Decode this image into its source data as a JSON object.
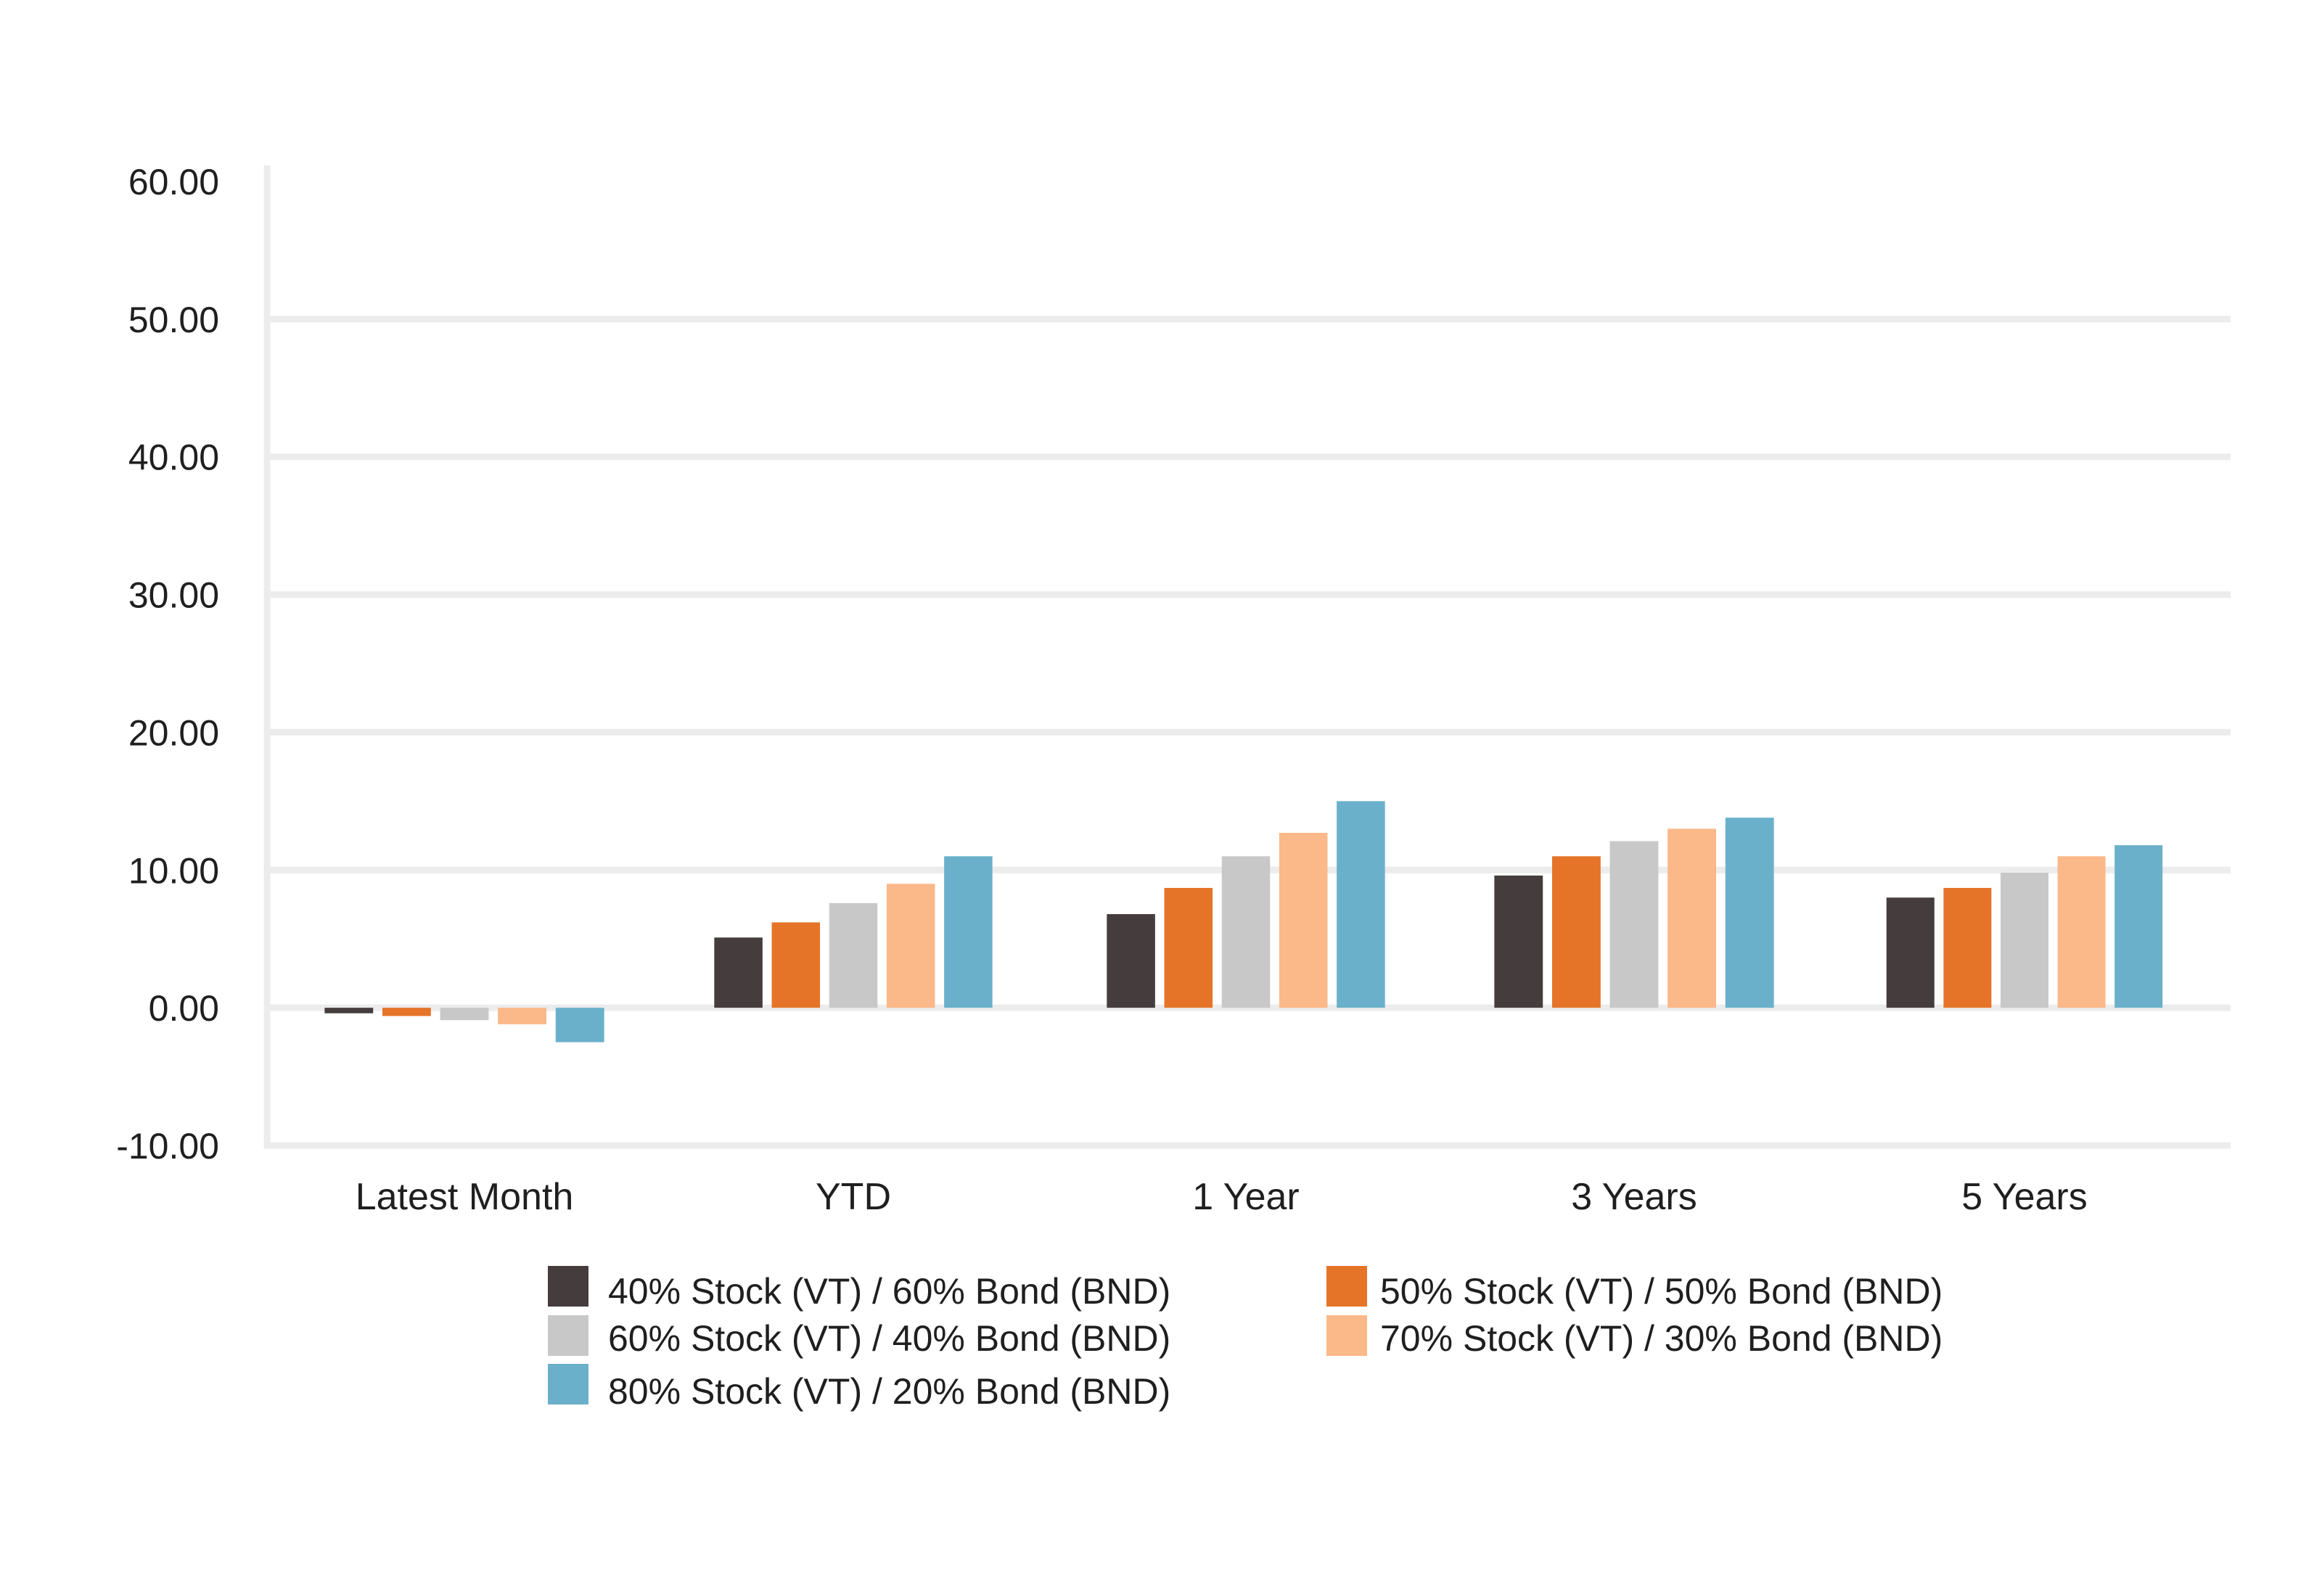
{
  "chart_data": {
    "type": "bar",
    "categories": [
      "Latest Month",
      "YTD",
      "1 Year",
      "3 Years",
      "5 Years"
    ],
    "series": [
      {
        "name": "40% Stock (VT) / 60% Bond (BND)",
        "color": "#453d3d",
        "values": [
          -0.4,
          5.1,
          6.8,
          9.6,
          8.0
        ]
      },
      {
        "name": "50% Stock (VT) / 50% Bond (BND)",
        "color": "#e57429",
        "values": [
          -0.6,
          6.2,
          8.7,
          11.0,
          8.7
        ]
      },
      {
        "name": "60% Stock (VT) / 40% Bond (BND)",
        "color": "#c8c8c9",
        "values": [
          -0.9,
          7.6,
          11.0,
          12.1,
          9.8
        ]
      },
      {
        "name": "70% Stock (VT) / 30% Bond (BND)",
        "color": "#fbb889",
        "values": [
          -1.2,
          9.0,
          12.7,
          13.0,
          11.0
        ]
      },
      {
        "name": "80% Stock (VT) / 20% Bond (BND)",
        "color": "#6ab0cb",
        "values": [
          -2.5,
          11.0,
          15.0,
          13.8,
          11.8
        ]
      }
    ],
    "ylim": [
      -10,
      60
    ],
    "yticks": [
      "60.00",
      "50.00",
      "40.00",
      "30.00",
      "20.00",
      "10.00",
      "0.00",
      "-10.00"
    ],
    "ytick_values": [
      60,
      50,
      40,
      30,
      20,
      10,
      0,
      -10
    ],
    "grid": true,
    "grid_color": "#ececec",
    "legend_position": "bottom",
    "title": "",
    "xlabel": "",
    "ylabel": ""
  }
}
